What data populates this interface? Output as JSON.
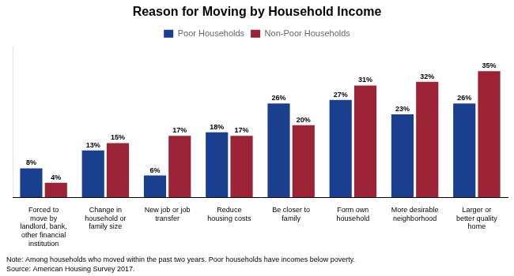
{
  "chart_data": {
    "type": "bar",
    "title": "Reason for Moving by Household Income",
    "categories": [
      "Forced to\nmove by\nlandlord, bank,\nother financial\ninstitution",
      "Change in\nhousehold or\nfamily size",
      "New job or job\ntransfer",
      "Reduce\nhousing costs",
      "Be closer to\nfamily",
      "Form own\nhousehold",
      "More desirable\nneighborhood",
      "Larger or\nbetter quality\nhome"
    ],
    "series": [
      {
        "name": "Poor Households",
        "color": "#1a3f8f",
        "values": [
          8,
          13,
          6,
          18,
          26,
          27,
          23,
          26
        ],
        "value_labels": [
          "8%",
          "13%",
          "6%",
          "18%",
          "26%",
          "27%",
          "23%",
          "26%"
        ]
      },
      {
        "name": "Non-Poor Households",
        "color": "#9b2335",
        "values": [
          4,
          15,
          17,
          17,
          20,
          31,
          32,
          35
        ],
        "value_labels": [
          "4%",
          "15%",
          "17%",
          "17%",
          "20%",
          "31%",
          "32%",
          "35%"
        ]
      }
    ],
    "annotations": [
      "Note: Among households who moved within the past two years. Poor households have incomes below poverty.\nSource: American Housing Survey 2017."
    ],
    "ylim": [
      0,
      42
    ],
    "grid": false,
    "legend": "top",
    "data_labels": true,
    "tick_labels": "x"
  }
}
